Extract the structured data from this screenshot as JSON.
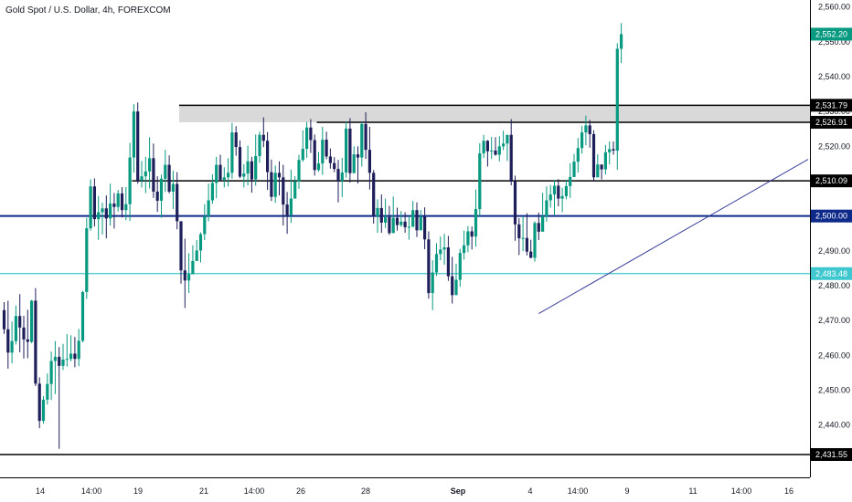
{
  "chart_data": {
    "type": "candlestick",
    "title": "Gold Spot / U.S. Dollar, 4h, FOREXCOM",
    "x_ticks": [
      "14",
      "14:00",
      "19",
      "21",
      "14:00",
      "26",
      "28",
      "Sep",
      "4",
      "14:00",
      "9",
      "11",
      "14:00",
      "16"
    ],
    "y_ticks": [
      "2,560.00",
      "2,550.00",
      "2,540.00",
      "2,530.00",
      "2,520.00",
      "2,510.00",
      "2,500.00",
      "2,490.00",
      "2,480.00",
      "2,470.00",
      "2,460.00",
      "2,450.00",
      "2,440.00"
    ],
    "ylim": [
      2425,
      2562
    ],
    "colors": {
      "up": "#089981",
      "down": "#1e1e5a",
      "navy": "#0d2a8a",
      "cyan": "#3ec7cf",
      "black": "#000000",
      "trend": "#3a3f9a",
      "zone": "#d9d9d9"
    },
    "levels": [
      {
        "label": "2,552.20",
        "value": 2552.2,
        "style": "tag-only",
        "tag_color": "#089981"
      },
      {
        "label": "2,531.79",
        "value": 2531.79,
        "style": "black",
        "start": 45
      },
      {
        "label": "2,526.91",
        "value": 2526.91,
        "style": "black",
        "start": 80
      },
      {
        "label": "2,510.09",
        "value": 2510.09,
        "style": "black",
        "start": 33
      },
      {
        "label": "2,500.00",
        "value": 2500.0,
        "style": "navy",
        "start": 0
      },
      {
        "label": "2,483.48",
        "value": 2483.48,
        "style": "cyan",
        "start": 0
      },
      {
        "label": "2,431.55",
        "value": 2431.55,
        "style": "black",
        "start": 0
      }
    ],
    "zone": {
      "top": 2531.79,
      "bottom": 2526.91,
      "start": 45
    },
    "trendline": {
      "from": [
        136,
        2472.0
      ],
      "to": [
        208,
        2518.5
      ]
    },
    "candles": [
      [
        2473.0,
        2467.5,
        2475.3,
        2466.2
      ],
      [
        2467.5,
        2460.8,
        2475.7,
        2456.2
      ],
      [
        2460.8,
        2464.1,
        2469.7,
        2457.7
      ],
      [
        2464.1,
        2471.3,
        2474.3,
        2463.1
      ],
      [
        2471.3,
        2468.0,
        2477.6,
        2460.9
      ],
      [
        2468.0,
        2464.6,
        2471.4,
        2459.1
      ],
      [
        2464.6,
        2463.9,
        2473.1,
        2459.2
      ],
      [
        2463.9,
        2475.7,
        2475.9,
        2463.5
      ],
      [
        2475.7,
        2451.9,
        2479.3,
        2451.2
      ],
      [
        2451.9,
        2441.2,
        2453.7,
        2439.1
      ],
      [
        2441.2,
        2447.3,
        2448.3,
        2440.4
      ],
      [
        2447.3,
        2451.8,
        2454.8,
        2445.9
      ],
      [
        2451.8,
        2458.4,
        2461.1,
        2447.2
      ],
      [
        2458.4,
        2459.6,
        2464.1,
        2448.9
      ],
      [
        2459.6,
        2457.0,
        2462.4,
        2433.2
      ],
      [
        2457.0,
        2458.8,
        2463.3,
        2455.8
      ],
      [
        2458.8,
        2459.0,
        2466.1,
        2456.8
      ],
      [
        2459.0,
        2460.5,
        2465.8,
        2458.3
      ],
      [
        2460.5,
        2459.0,
        2465.3,
        2456.6
      ],
      [
        2459.0,
        2464.2,
        2467.6,
        2456.9
      ],
      [
        2464.2,
        2478.2,
        2478.5,
        2463.7
      ],
      [
        2478.2,
        2496.5,
        2499.5,
        2476.2
      ],
      [
        2496.5,
        2508.5,
        2510.5,
        2495.8
      ],
      [
        2508.5,
        2499.1,
        2510.8,
        2497.0
      ],
      [
        2499.1,
        2501.1,
        2505.7,
        2493.2
      ],
      [
        2501.1,
        2502.2,
        2503.8,
        2494.7
      ],
      [
        2502.2,
        2499.3,
        2505.9,
        2493.6
      ],
      [
        2499.3,
        2503.6,
        2509.3,
        2497.3
      ],
      [
        2503.6,
        2502.6,
        2506.6,
        2496.4
      ],
      [
        2502.6,
        2506.5,
        2507.5,
        2501.3
      ],
      [
        2506.5,
        2501.7,
        2508.3,
        2499.6
      ],
      [
        2501.7,
        2503.4,
        2508.3,
        2498.8
      ],
      [
        2503.4,
        2516.8,
        2521.0,
        2498.6
      ],
      [
        2516.8,
        2530.0,
        2532.1,
        2512.5
      ],
      [
        2530.0,
        2510.2,
        2532.6,
        2509.3
      ],
      [
        2510.2,
        2511.4,
        2515.8,
        2508.2
      ],
      [
        2511.4,
        2512.8,
        2517.0,
        2506.6
      ],
      [
        2512.8,
        2516.6,
        2522.6,
        2507.9
      ],
      [
        2516.6,
        2507.0,
        2520.8,
        2505.2
      ],
      [
        2507.0,
        2504.4,
        2511.4,
        2501.2
      ],
      [
        2504.4,
        2510.7,
        2511.9,
        2499.5
      ],
      [
        2510.7,
        2514.7,
        2519.0,
        2506.9
      ],
      [
        2514.7,
        2507.0,
        2517.4,
        2506.5
      ],
      [
        2507.0,
        2509.2,
        2513.0,
        2502.0
      ],
      [
        2509.2,
        2498.5,
        2512.6,
        2496.2
      ],
      [
        2498.5,
        2484.4,
        2498.5,
        2480.6
      ],
      [
        2484.4,
        2481.5,
        2493.5,
        2473.6
      ],
      [
        2481.5,
        2483.3,
        2489.3,
        2477.9
      ],
      [
        2483.3,
        2487.1,
        2491.6,
        2484.0
      ],
      [
        2487.1,
        2490.1,
        2493.1,
        2487.2
      ],
      [
        2490.1,
        2494.8,
        2495.3,
        2486.7
      ],
      [
        2494.8,
        2499.9,
        2503.4,
        2493.1
      ],
      [
        2499.9,
        2504.5,
        2509.3,
        2498.5
      ],
      [
        2504.5,
        2509.5,
        2512.0,
        2503.5
      ],
      [
        2509.5,
        2514.7,
        2517.0,
        2505.1
      ],
      [
        2514.7,
        2510.4,
        2517.6,
        2510.0
      ],
      [
        2510.4,
        2511.1,
        2514.0,
        2508.2
      ],
      [
        2511.1,
        2512.4,
        2516.6,
        2508.5
      ],
      [
        2512.4,
        2524.0,
        2526.7,
        2510.7
      ],
      [
        2524.0,
        2519.8,
        2525.8,
        2517.3
      ],
      [
        2519.8,
        2511.3,
        2521.7,
        2510.9
      ],
      [
        2511.3,
        2512.2,
        2514.9,
        2508.2
      ],
      [
        2512.2,
        2515.7,
        2520.2,
        2508.8
      ],
      [
        2515.7,
        2510.5,
        2517.0,
        2506.7
      ],
      [
        2510.5,
        2517.2,
        2523.4,
        2508.7
      ],
      [
        2517.2,
        2523.3,
        2524.2,
        2515.3
      ],
      [
        2523.3,
        2521.6,
        2528.3,
        2519.8
      ],
      [
        2521.6,
        2512.6,
        2524.1,
        2507.5
      ],
      [
        2512.6,
        2505.5,
        2516.2,
        2504.3
      ],
      [
        2505.5,
        2512.4,
        2514.5,
        2503.8
      ],
      [
        2512.4,
        2511.1,
        2515.7,
        2505.9
      ],
      [
        2511.1,
        2503.3,
        2514.7,
        2497.3
      ],
      [
        2503.3,
        2500.3,
        2506.9,
        2494.9
      ],
      [
        2500.3,
        2505.0,
        2513.3,
        2498.0
      ],
      [
        2505.0,
        2509.9,
        2511.4,
        2507.3
      ],
      [
        2509.9,
        2516.1,
        2517.6,
        2507.8
      ],
      [
        2516.1,
        2519.3,
        2524.6,
        2515.6
      ],
      [
        2519.3,
        2525.4,
        2527.0,
        2516.7
      ],
      [
        2525.4,
        2521.8,
        2527.8,
        2518.1
      ],
      [
        2521.8,
        2513.2,
        2523.4,
        2511.6
      ],
      [
        2513.2,
        2515.1,
        2518.4,
        2512.7
      ],
      [
        2515.1,
        2521.9,
        2525.6,
        2511.8
      ],
      [
        2521.9,
        2517.1,
        2524.2,
        2516.3
      ],
      [
        2517.1,
        2515.2,
        2519.4,
        2513.6
      ],
      [
        2515.2,
        2513.5,
        2516.9,
        2512.6
      ],
      [
        2513.5,
        2510.1,
        2516.1,
        2503.9
      ],
      [
        2510.1,
        2512.5,
        2516.7,
        2505.4
      ],
      [
        2512.5,
        2525.1,
        2527.0,
        2511.0
      ],
      [
        2525.1,
        2512.3,
        2528.1,
        2509.6
      ],
      [
        2512.3,
        2517.7,
        2520.0,
        2514.1
      ],
      [
        2517.7,
        2516.8,
        2520.0,
        2509.3
      ],
      [
        2516.8,
        2526.4,
        2526.9,
        2514.2
      ],
      [
        2526.4,
        2519.0,
        2529.8,
        2516.4
      ],
      [
        2519.0,
        2512.4,
        2525.6,
        2507.6
      ],
      [
        2512.4,
        2499.9,
        2513.2,
        2497.8
      ],
      [
        2499.9,
        2502.3,
        2504.8,
        2495.2
      ],
      [
        2502.3,
        2498.1,
        2506.2,
        2495.2
      ],
      [
        2498.1,
        2499.7,
        2505.0,
        2496.6
      ],
      [
        2499.7,
        2495.1,
        2502.9,
        2494.6
      ],
      [
        2495.1,
        2499.5,
        2505.6,
        2496.3
      ],
      [
        2499.5,
        2497.4,
        2502.4,
        2495.8
      ],
      [
        2497.4,
        2498.4,
        2501.4,
        2496.9
      ],
      [
        2498.4,
        2496.8,
        2501.1,
        2495.2
      ],
      [
        2496.8,
        2496.9,
        2500.1,
        2493.2
      ],
      [
        2496.9,
        2501.7,
        2504.3,
        2497.8
      ],
      [
        2501.7,
        2495.9,
        2503.9,
        2494.0
      ],
      [
        2495.9,
        2499.8,
        2501.7,
        2496.2
      ],
      [
        2499.8,
        2493.3,
        2502.5,
        2490.5
      ],
      [
        2493.3,
        2477.9,
        2495.6,
        2476.3
      ],
      [
        2477.9,
        2483.8,
        2487.3,
        2473.0
      ],
      [
        2483.8,
        2489.1,
        2492.2,
        2482.8
      ],
      [
        2489.1,
        2490.4,
        2494.1,
        2487.3
      ],
      [
        2490.4,
        2491.0,
        2494.9,
        2486.0
      ],
      [
        2491.0,
        2482.7,
        2494.3,
        2481.4
      ],
      [
        2482.7,
        2477.3,
        2488.3,
        2474.9
      ],
      [
        2477.3,
        2481.7,
        2486.3,
        2477.9
      ],
      [
        2481.7,
        2489.4,
        2490.6,
        2479.7
      ],
      [
        2489.4,
        2491.6,
        2495.8,
        2487.5
      ],
      [
        2491.6,
        2495.6,
        2497.1,
        2489.6
      ],
      [
        2495.6,
        2494.1,
        2497.0,
        2490.4
      ],
      [
        2494.1,
        2502.0,
        2507.6,
        2491.2
      ],
      [
        2502.0,
        2518.0,
        2520.9,
        2499.7
      ],
      [
        2518.0,
        2521.6,
        2523.3,
        2516.7
      ],
      [
        2521.6,
        2518.6,
        2521.8,
        2514.2
      ],
      [
        2518.6,
        2518.8,
        2522.7,
        2516.4
      ],
      [
        2518.8,
        2517.6,
        2522.6,
        2517.3
      ],
      [
        2517.6,
        2520.0,
        2522.9,
        2515.7
      ],
      [
        2520.0,
        2520.8,
        2524.5,
        2518.9
      ],
      [
        2520.8,
        2523.3,
        2523.2,
        2515.8
      ],
      [
        2523.3,
        2509.9,
        2527.8,
        2508.8
      ],
      [
        2509.9,
        2497.6,
        2511.6,
        2492.9
      ],
      [
        2497.6,
        2493.6,
        2499.4,
        2488.8
      ],
      [
        2493.6,
        2493.7,
        2499.9,
        2489.9
      ],
      [
        2493.7,
        2489.8,
        2500.8,
        2488.7
      ],
      [
        2489.8,
        2488.0,
        2493.2,
        2487.9
      ],
      [
        2488.0,
        2498.0,
        2498.5,
        2486.9
      ],
      [
        2498.0,
        2495.5,
        2501.0,
        2493.1
      ],
      [
        2495.5,
        2499.9,
        2506.7,
        2495.7
      ],
      [
        2499.9,
        2504.5,
        2508.5,
        2498.4
      ],
      [
        2504.5,
        2506.2,
        2508.9,
        2502.4
      ],
      [
        2506.2,
        2508.7,
        2510.4,
        2500.1
      ],
      [
        2508.7,
        2505.0,
        2510.6,
        2502.8
      ],
      [
        2505.0,
        2505.7,
        2508.1,
        2501.1
      ],
      [
        2505.7,
        2508.6,
        2510.4,
        2504.8
      ],
      [
        2508.6,
        2511.2,
        2515.1,
        2505.2
      ],
      [
        2511.2,
        2515.6,
        2517.8,
        2511.2
      ],
      [
        2515.6,
        2519.5,
        2522.4,
        2512.5
      ],
      [
        2519.5,
        2524.0,
        2525.9,
        2517.9
      ],
      [
        2524.0,
        2526.0,
        2528.8,
        2520.3
      ],
      [
        2526.0,
        2523.5,
        2527.6,
        2519.6
      ],
      [
        2523.5,
        2511.1,
        2524.6,
        2509.9
      ],
      [
        2511.1,
        2514.8,
        2517.7,
        2512.3
      ],
      [
        2514.8,
        2513.4,
        2514.3,
        2510.5
      ],
      [
        2513.4,
        2518.3,
        2520.4,
        2511.9
      ],
      [
        2518.3,
        2519.2,
        2521.4,
        2514.8
      ],
      [
        2519.2,
        2518.8,
        2521.4,
        2517.6
      ],
      [
        2518.8,
        2548.0,
        2549.6,
        2513.3
      ],
      [
        2548.0,
        2552.2,
        2555.4,
        2543.9
      ]
    ]
  }
}
